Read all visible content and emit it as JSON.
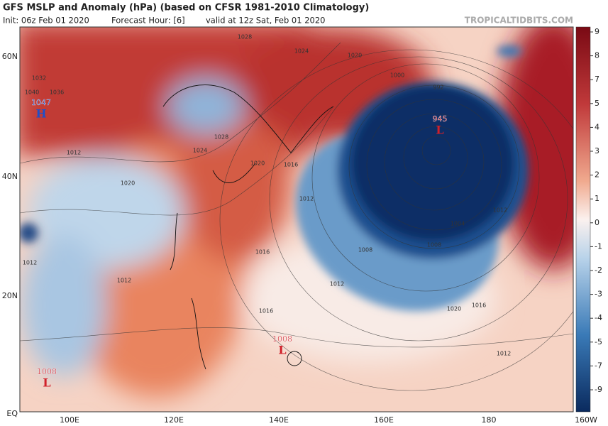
{
  "header": {
    "title": "GFS MSLP and Anomaly (hPa) (based on CFSR 1981-2010 Climatology)",
    "init": "Init: 06z Feb 01 2020",
    "forecast_hour": "Forecast Hour: [6]",
    "valid": "valid at 12z Sat, Feb 01 2020",
    "site": "TROPICALTIDBITS.COM"
  },
  "map": {
    "lat_labels": [
      "60N",
      "40N",
      "20N",
      "EQ"
    ],
    "lon_labels": [
      "100E",
      "120E",
      "140E",
      "160E",
      "180",
      "160W"
    ],
    "centers": [
      {
        "value": "1047",
        "symbol": "H"
      },
      {
        "value": "945",
        "symbol": "L"
      },
      {
        "value": "1008",
        "symbol": "L"
      },
      {
        "value": "1008",
        "symbol": "L"
      }
    ],
    "isobar_labels": [
      "1028",
      "1024",
      "1020",
      "1032",
      "1036",
      "1040",
      "1028",
      "1024",
      "1020",
      "1016",
      "1012",
      "1000",
      "992",
      "1008",
      "1012",
      "1012",
      "1020",
      "1016",
      "1012",
      "1016",
      "1020",
      "1012",
      "1016",
      "1012",
      "1012",
      "1008",
      "1004"
    ]
  },
  "colorbar": {
    "ticks": [
      9,
      8,
      7,
      5,
      4,
      3,
      2,
      1,
      0,
      -1,
      -2,
      -3,
      -4,
      -5,
      -7,
      -9
    ]
  }
}
